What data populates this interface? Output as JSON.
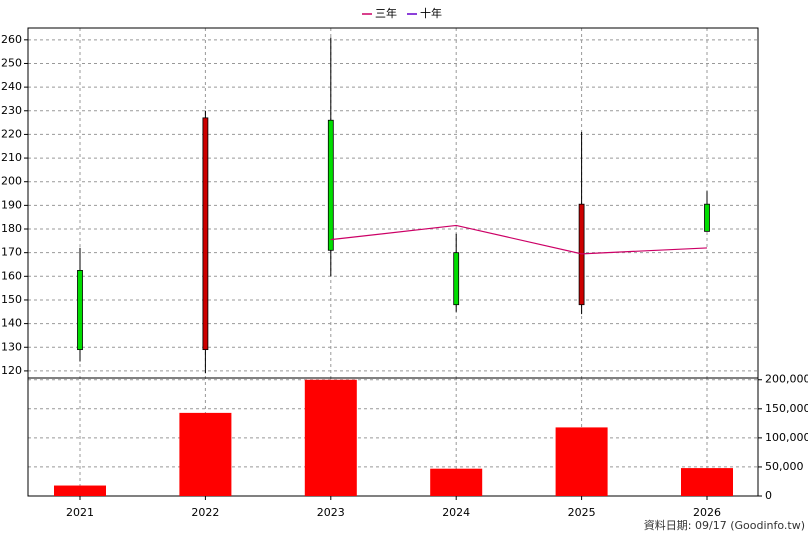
{
  "chart_data": [
    {
      "type": "candlestick",
      "categories": [
        "2021",
        "2022",
        "2023",
        "2024",
        "2025",
        "2026"
      ],
      "open": [
        162.5,
        129,
        226,
        170,
        148,
        190.5
      ],
      "high": [
        172,
        230,
        261,
        178,
        221,
        196
      ],
      "low": [
        124,
        119,
        160,
        145,
        144,
        179
      ],
      "close": [
        129,
        227,
        171,
        148,
        190.5,
        179
      ],
      "up_color": "#cc0000",
      "down_color": "#00dd00",
      "series": [
        {
          "name": "三年",
          "color": "#cc0066",
          "values": [
            null,
            null,
            175.5,
            181.5,
            169.5,
            172
          ]
        },
        {
          "name": "十年",
          "color": "#6600cc",
          "values": [
            null,
            null,
            null,
            null,
            null,
            null
          ]
        }
      ],
      "ylim": [
        117,
        265
      ],
      "yticks": [
        120,
        130,
        140,
        150,
        160,
        170,
        180,
        190,
        200,
        210,
        220,
        230,
        240,
        250,
        260
      ],
      "grid": true,
      "legend": "top",
      "source": "資料日期: 09/17  (Goodinfo.tw)"
    },
    {
      "type": "bar",
      "values": [
        18000,
        143000,
        200000,
        47000,
        118000,
        48000
      ],
      "color": "#ff0000",
      "ylim": [
        0,
        203000
      ],
      "yticks": [
        0,
        {
          "value": 50000,
          "label": "50,000"
        },
        {
          "value": 100000,
          "label": "100,000"
        },
        {
          "value": 150000,
          "label": "150,000"
        },
        {
          "value": 200000,
          "label": "200,000"
        }
      ],
      "grid": true
    }
  ]
}
